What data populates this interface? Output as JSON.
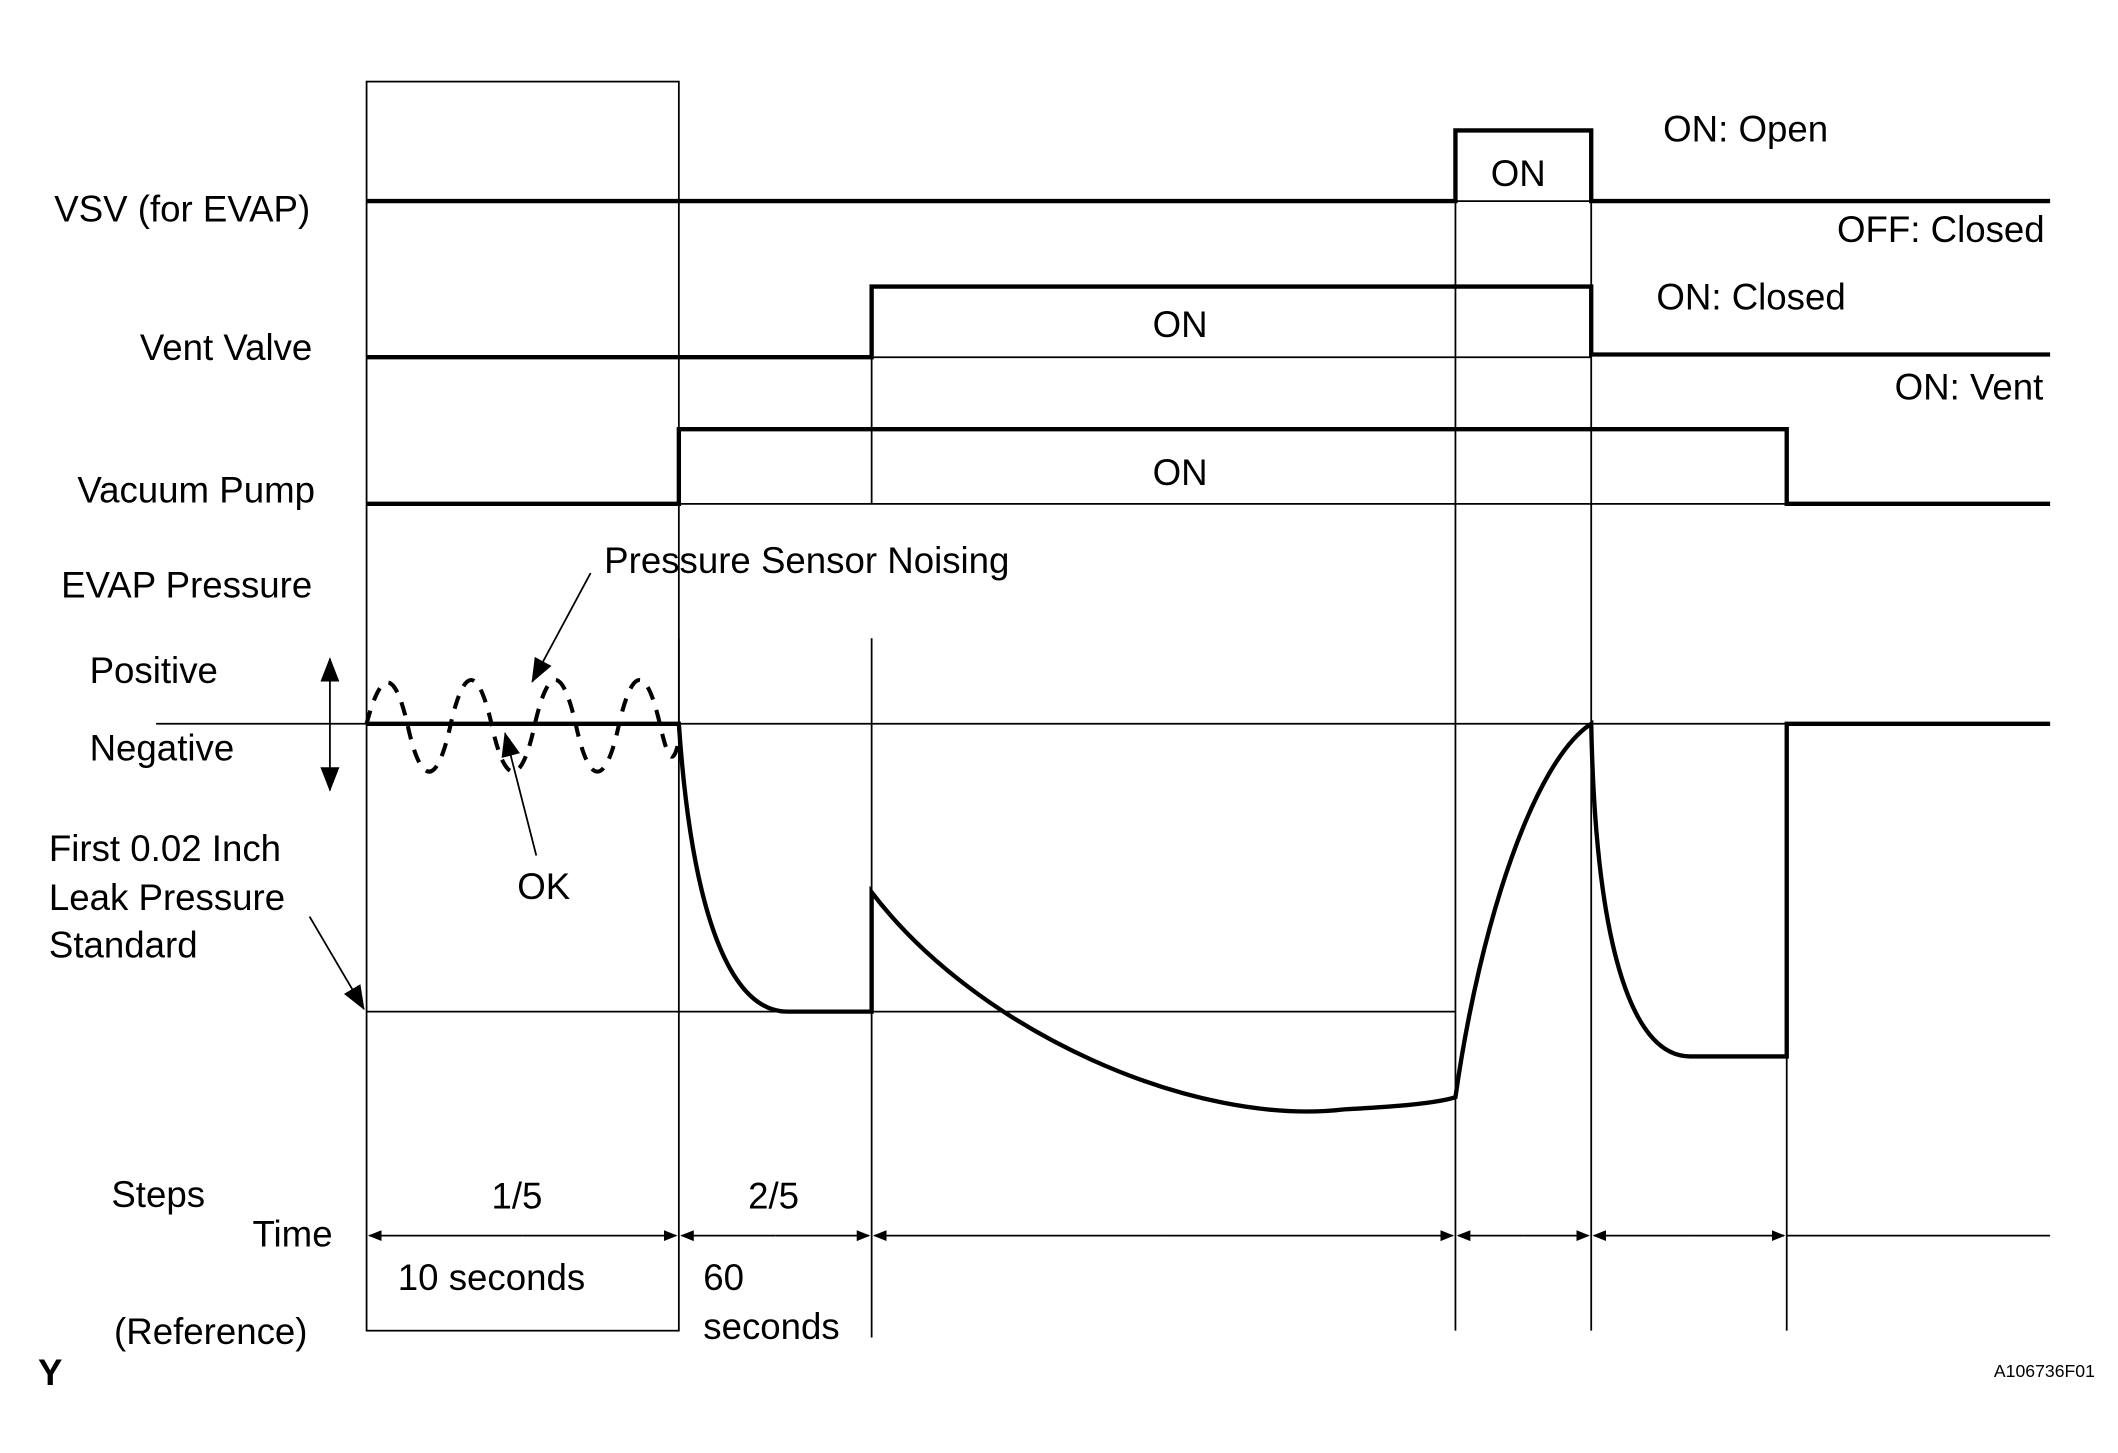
{
  "signals": {
    "vsv": {
      "label": "VSV (for EVAP)",
      "on_label": "ON",
      "on_state": "ON: Open",
      "off_state": "OFF: Closed"
    },
    "vent_valve": {
      "label": "Vent Valve",
      "on_label": "ON",
      "on_state": "ON: Closed",
      "off_state": "ON: Vent"
    },
    "vacuum_pump": {
      "label": "Vacuum Pump",
      "on_label": "ON"
    },
    "evap_pressure": {
      "label": "EVAP Pressure",
      "positive": "Positive",
      "negative": "Negative",
      "noise_note": "Pressure Sensor Noising",
      "ok_note": "OK"
    },
    "standard": {
      "line1": "First 0.02 Inch",
      "line2": "Leak Pressure",
      "line3": "Standard"
    }
  },
  "timeline": {
    "steps_label": "Steps",
    "time_label": "Time",
    "reference_label": "(Reference)",
    "steps": [
      "1/5",
      "2/5"
    ],
    "durations": [
      "10 seconds",
      "60",
      "seconds"
    ]
  },
  "footer": {
    "corner_mark": "Y",
    "figure_id": "A106736F01"
  }
}
